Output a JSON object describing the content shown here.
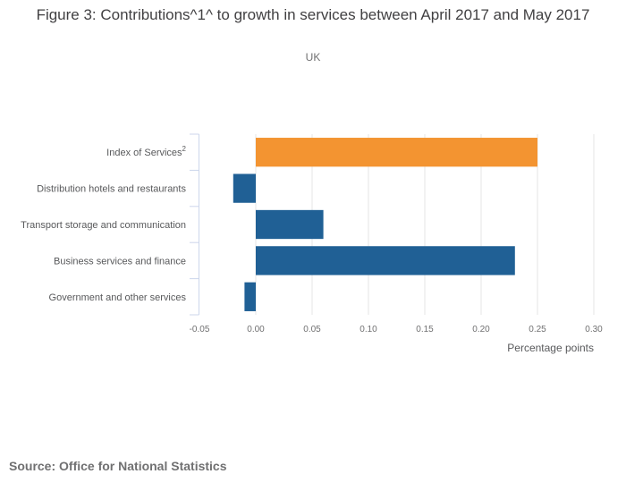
{
  "chart_data": {
    "type": "bar",
    "orientation": "horizontal",
    "title": "Figure 3: Contributions^1^ to growth in services between April 2017 and May 2017",
    "subtitle": "UK",
    "categories": [
      "Index of Services",
      "Distribution hotels and restaurants",
      "Transport storage and communication",
      "Business services and finance",
      "Government and other services"
    ],
    "category_superscripts": [
      "2",
      "",
      "",
      "",
      ""
    ],
    "values": [
      0.25,
      -0.02,
      0.06,
      0.23,
      -0.01
    ],
    "bar_colors": [
      "#f39431",
      "#206095",
      "#206095",
      "#206095",
      "#206095"
    ],
    "xlabel": "Percentage points",
    "ylabel": "",
    "xlim": [
      -0.05,
      0.3
    ],
    "xticks": [
      -0.05,
      0.0,
      0.05,
      0.1,
      0.15,
      0.2,
      0.25,
      0.3
    ],
    "xtick_labels": [
      "-0.05",
      "0.00",
      "0.05",
      "0.10",
      "0.15",
      "0.20",
      "0.25",
      "0.30"
    ],
    "grid": "vertical",
    "legend": "none"
  },
  "footer": {
    "source": "Source: Office for National Statistics"
  },
  "colors": {
    "grid": "#e6e6e6",
    "category_axis": "#ccd6eb"
  }
}
